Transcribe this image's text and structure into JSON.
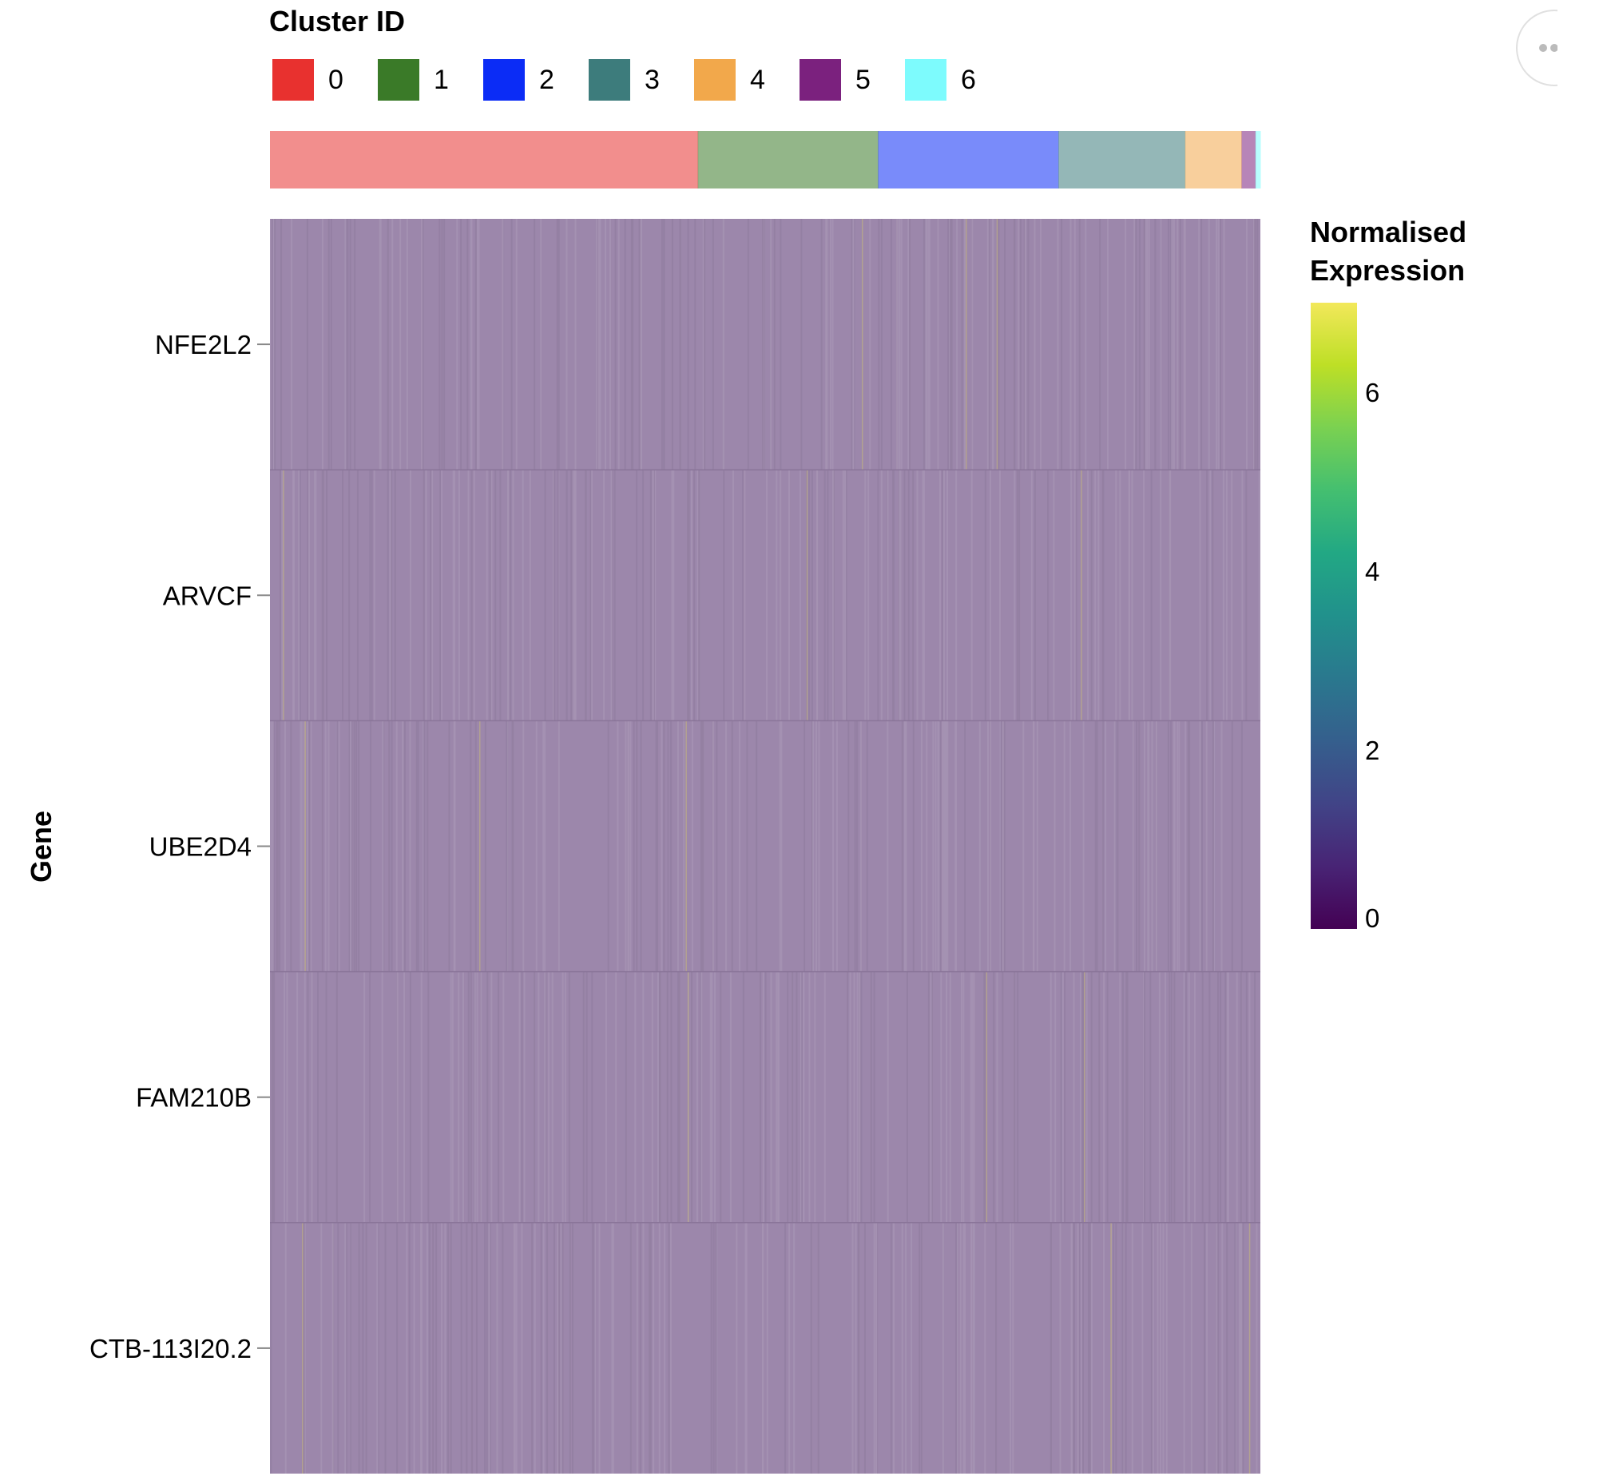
{
  "chart_data": {
    "type": "heatmap",
    "cluster_legend": {
      "title": "Cluster ID",
      "entries": [
        {
          "label": "0",
          "color": "#e8312f",
          "share": 0.432
        },
        {
          "label": "1",
          "color": "#3a7a28",
          "share": 0.182
        },
        {
          "label": "2",
          "color": "#0b2cf6",
          "share": 0.182
        },
        {
          "label": "3",
          "color": "#3d7c7c",
          "share": 0.128
        },
        {
          "label": "4",
          "color": "#f2a84b",
          "share": 0.057
        },
        {
          "label": "5",
          "color": "#7b217e",
          "share": 0.014
        },
        {
          "label": "6",
          "color": "#7dfbfd",
          "share": 0.005
        }
      ]
    },
    "ylabel": "Gene",
    "genes": [
      "NFE2L2",
      "ARVCF",
      "UBE2D4",
      "FAM210B",
      "CTB-113I20.2"
    ],
    "colorbar": {
      "title_lines": [
        "Normalised",
        "Expression"
      ],
      "scale": "viridis",
      "range": [
        0,
        7
      ],
      "ticks": [
        0,
        2,
        4,
        6
      ]
    },
    "cell_value_typical": 0.1
  }
}
